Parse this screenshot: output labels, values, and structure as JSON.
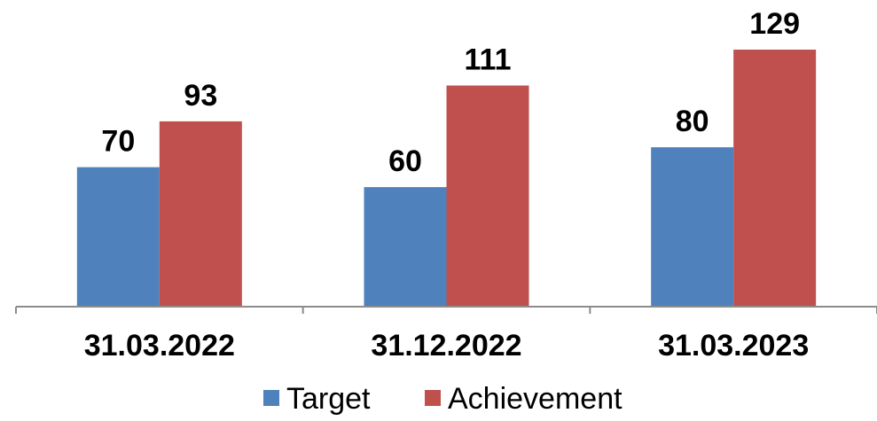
{
  "chart_data": {
    "type": "bar",
    "categories": [
      "31.03.2022",
      "31.12.2022",
      "31.03.2023"
    ],
    "series": [
      {
        "name": "Target",
        "values": [
          70,
          60,
          80
        ],
        "color": "#4F81BD"
      },
      {
        "name": "Achievement",
        "values": [
          93,
          111,
          129
        ],
        "color": "#C0504D"
      }
    ],
    "title": "",
    "xlabel": "",
    "ylabel": "",
    "ylim": [
      0,
      129
    ],
    "grid": false,
    "legend_position": "bottom",
    "data_labels": true
  }
}
